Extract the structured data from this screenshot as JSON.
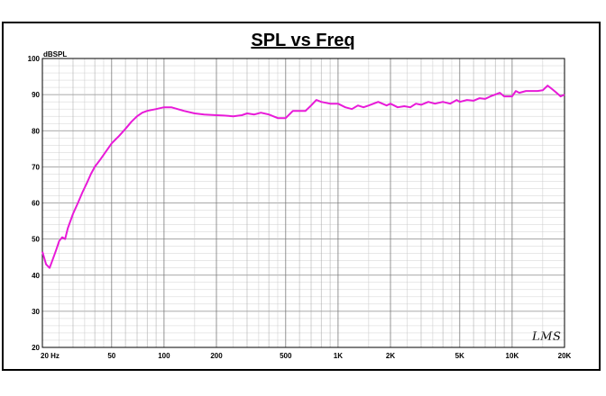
{
  "chart_data": {
    "type": "line",
    "title": "SPL vs Freq",
    "ylabel": "dBSPL",
    "xlabel": "",
    "x_scale": "log",
    "xlim": [
      20,
      20000
    ],
    "ylim": [
      20,
      100
    ],
    "grid": true,
    "y_ticks": [
      "20",
      "30",
      "40",
      "50",
      "60",
      "70",
      "80",
      "90",
      "100"
    ],
    "x_ticks": [
      {
        "value": 20,
        "label": "20  Hz"
      },
      {
        "value": 50,
        "label": "50"
      },
      {
        "value": 100,
        "label": "100"
      },
      {
        "value": 200,
        "label": "200"
      },
      {
        "value": 500,
        "label": "500"
      },
      {
        "value": 1000,
        "label": "1K"
      },
      {
        "value": 2000,
        "label": "2K"
      },
      {
        "value": 5000,
        "label": "5K"
      },
      {
        "value": 10000,
        "label": "10K"
      },
      {
        "value": 20000,
        "label": "20K"
      }
    ],
    "series": [
      {
        "color": "#e81ad8",
        "x": [
          20,
          21,
          22,
          23,
          24,
          25,
          26,
          27,
          28,
          30,
          32,
          34,
          36,
          38,
          40,
          43,
          46,
          50,
          55,
          60,
          65,
          70,
          75,
          80,
          90,
          100,
          110,
          130,
          150,
          170,
          200,
          220,
          250,
          280,
          300,
          330,
          360,
          400,
          450,
          500,
          550,
          600,
          650,
          700,
          750,
          800,
          900,
          1000,
          1100,
          1200,
          1300,
          1400,
          1500,
          1700,
          1900,
          2000,
          2200,
          2400,
          2600,
          2800,
          3000,
          3300,
          3600,
          4000,
          4400,
          4800,
          5000,
          5500,
          6000,
          6500,
          7000,
          7500,
          8000,
          8500,
          9000,
          10000,
          10500,
          11000,
          12000,
          13000,
          14000,
          15000,
          16000,
          17000,
          18000,
          19000,
          20000
        ],
        "y": [
          46.5,
          43,
          42,
          44.5,
          47,
          49.5,
          50.5,
          50,
          53,
          57,
          60,
          63,
          65.5,
          68,
          70,
          72,
          74,
          76.5,
          78.5,
          80.5,
          82.5,
          84,
          85,
          85.5,
          86,
          86.5,
          86.5,
          85.5,
          84.8,
          84.5,
          84.3,
          84.2,
          84,
          84.3,
          84.8,
          84.5,
          85,
          84.5,
          83.5,
          83.5,
          85.5,
          85.5,
          85.5,
          87,
          88.5,
          88,
          87.5,
          87.5,
          86.5,
          86,
          87,
          86.5,
          87,
          88,
          87,
          87.5,
          86.5,
          86.8,
          86.5,
          87.5,
          87.2,
          88,
          87.5,
          88,
          87.5,
          88.5,
          88,
          88.5,
          88.3,
          89,
          88.8,
          89.5,
          90,
          90.5,
          89.5,
          89.5,
          91,
          90.5,
          91,
          91,
          91,
          91.2,
          92.5,
          91.5,
          90.5,
          89.5,
          90
        ]
      }
    ]
  },
  "logo_text": "LMS"
}
